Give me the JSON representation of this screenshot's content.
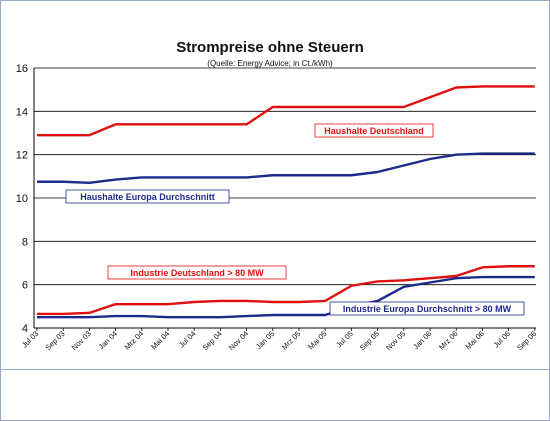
{
  "chart_data": {
    "type": "line",
    "title": "Strompreise ohne Steuern",
    "subtitle": "(Quelle: Energy Advice; in Ct./kWh)",
    "xlabel": "",
    "ylabel": "",
    "ylim": [
      4,
      16
    ],
    "yticks": [
      4,
      6,
      8,
      10,
      12,
      14,
      16
    ],
    "grid": "horizontal",
    "x": [
      "Jul 03",
      "Sep 03",
      "Nov 03",
      "Jan 04",
      "Mrz 04",
      "Mai 04",
      "Jul 04",
      "Sep 04",
      "Nov 04",
      "Jan 05",
      "Mrz 05",
      "Mai 05",
      "Jul 05",
      "Sep 05",
      "Nov 05",
      "Jan 06",
      "Mrz 06",
      "Mai 06",
      "Jul 06",
      "Sep 06"
    ],
    "series": [
      {
        "name": "Haushalte Deutschland",
        "color": "#e01010",
        "values": [
          12.9,
          12.9,
          12.9,
          13.4,
          13.4,
          13.4,
          13.4,
          13.4,
          13.4,
          14.2,
          14.2,
          14.2,
          14.2,
          14.2,
          14.2,
          14.65,
          15.1,
          15.15,
          15.15,
          15.15
        ]
      },
      {
        "name": "Haushalte Europa Durchschnitt",
        "color": "#1c2a8c",
        "values": [
          10.75,
          10.75,
          10.7,
          10.85,
          10.95,
          10.95,
          10.95,
          10.95,
          10.95,
          11.05,
          11.05,
          11.05,
          11.05,
          11.2,
          11.5,
          11.8,
          12.0,
          12.05,
          12.05,
          12.05
        ]
      },
      {
        "name": "Industrie Deutschland > 80 MW",
        "color": "#e01010",
        "values": [
          4.65,
          4.65,
          4.7,
          5.1,
          5.1,
          5.1,
          5.2,
          5.25,
          5.25,
          5.2,
          5.2,
          5.25,
          5.95,
          6.15,
          6.2,
          6.3,
          6.4,
          6.8,
          6.85,
          6.85
        ]
      },
      {
        "name": "Industrie Europa Durchschnitt > 80 MW",
        "color": "#1c2a8c",
        "values": [
          4.5,
          4.5,
          4.5,
          4.55,
          4.55,
          4.5,
          4.5,
          4.5,
          4.55,
          4.6,
          4.6,
          4.6,
          5.0,
          5.25,
          5.9,
          6.1,
          6.3,
          6.35,
          6.35,
          6.35
        ]
      }
    ]
  }
}
